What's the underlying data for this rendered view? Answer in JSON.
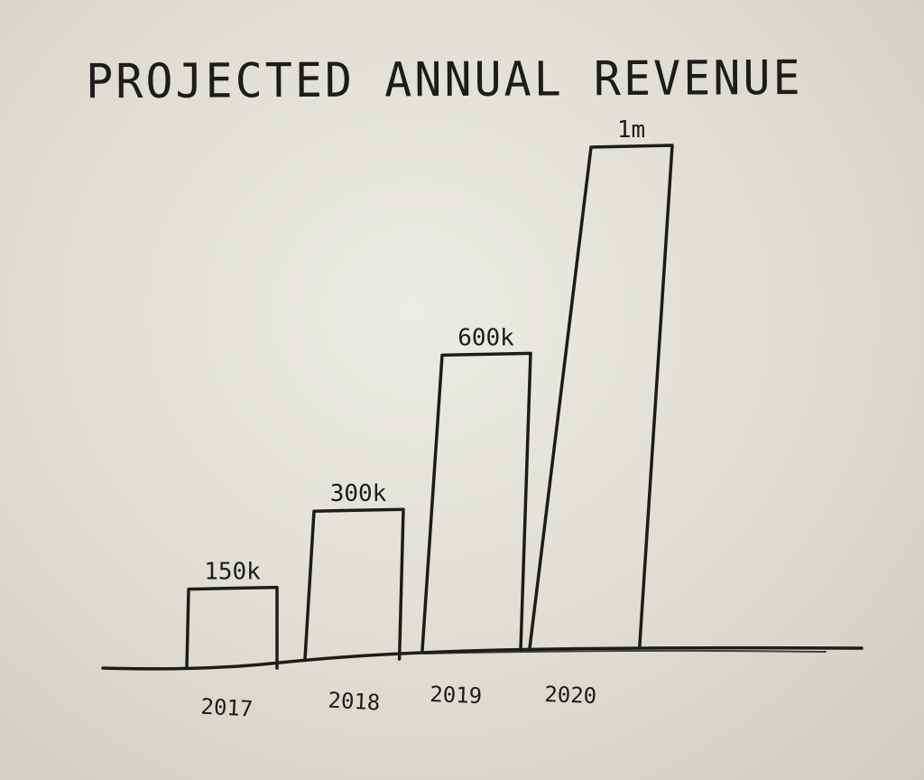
{
  "chart_data": {
    "type": "bar",
    "title": "PROJECTED ANNUAL REVENUE",
    "categories": [
      "2017",
      "2018",
      "2019",
      "2020"
    ],
    "values": [
      150000,
      300000,
      600000,
      1000000
    ],
    "data_labels": [
      "150k",
      "300k",
      "600k",
      "1m"
    ],
    "xlabel": "",
    "ylabel": "",
    "ylim": [
      0,
      1000000
    ],
    "grid": false,
    "legend": "none",
    "style": "hand-drawn ink on paper",
    "colors": {
      "ink": "#1c1c1c",
      "paper": "#e4e2da"
    }
  }
}
